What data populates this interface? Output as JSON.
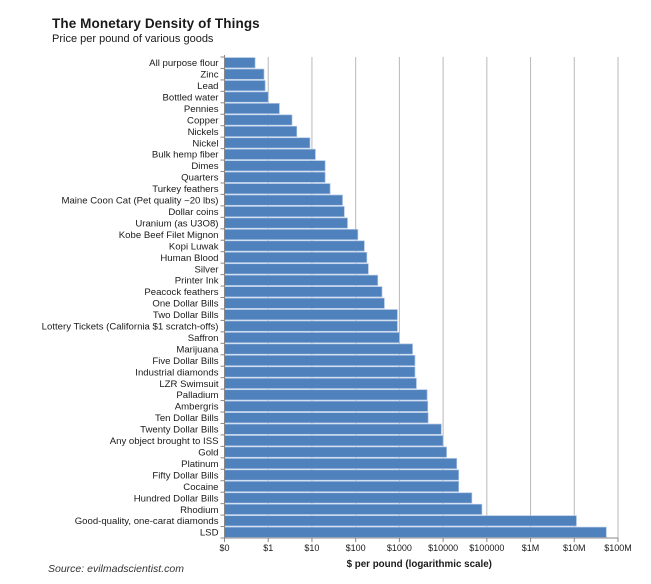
{
  "chart_data": {
    "type": "bar",
    "orientation": "horizontal",
    "title": "The Monetary Density of Things",
    "subtitle": "Price per pound of various goods",
    "xlabel": "$ per pound (logarithmic scale)",
    "ylabel": "",
    "xscale": "log",
    "xlim": [
      0.1,
      100000000
    ],
    "grid": true,
    "bar_color": "#4f81bd",
    "xticks": [
      0.1,
      1,
      10,
      100,
      1000,
      10000,
      100000,
      1000000,
      10000000,
      100000000
    ],
    "xtick_labels": [
      "$0",
      "$1",
      "$10",
      "$100",
      "$1000",
      "$10000",
      "$100000",
      "$1M",
      "$10M",
      "$100M"
    ],
    "categories": [
      "All purpose flour",
      "Zinc",
      "Lead",
      "Bottled water",
      "Pennies",
      "Copper",
      "Nickels",
      "Nickel",
      "Bulk hemp fiber",
      "Dimes",
      "Quarters",
      "Turkey feathers",
      "Maine Coon Cat (Pet quality ~20 lbs)",
      "Dollar coins",
      "Uranium (as U3O8)",
      "Kobe Beef Filet Mignon",
      "Kopi Luwak",
      "Human Blood",
      "Silver",
      "Printer Ink",
      "Peacock feathers",
      "One Dollar Bills",
      "Two Dollar Bills",
      "Lottery Tickets (California $1 scratch-offs)",
      "Saffron",
      "Marijuana",
      "Five Dollar Bills",
      "Industrial diamonds",
      "LZR Swimsuit",
      "Palladium",
      "Ambergris",
      "Ten Dollar Bills",
      "Twenty Dollar Bills",
      "Any object brought to ISS",
      "Gold",
      "Platinum",
      "Fifty Dollar Bills",
      "Cocaine",
      "Hundred Dollar Bills",
      "Rhodium",
      "Good-quality, one-carat diamonds",
      "LSD"
    ],
    "values": [
      0.5,
      0.8,
      0.85,
      1.0,
      1.8,
      3.5,
      4.5,
      9,
      12,
      20,
      20,
      26,
      50,
      55,
      65,
      112,
      158,
      180,
      195,
      320,
      400,
      454,
      900,
      900,
      1000,
      2000,
      2270,
      2270,
      2450,
      4300,
      4450,
      4540,
      9080,
      10000,
      12000,
      20500,
      22700,
      22700,
      45400,
      77000,
      11200000,
      54000000
    ],
    "source": "Source: evilmadscientist.com"
  }
}
